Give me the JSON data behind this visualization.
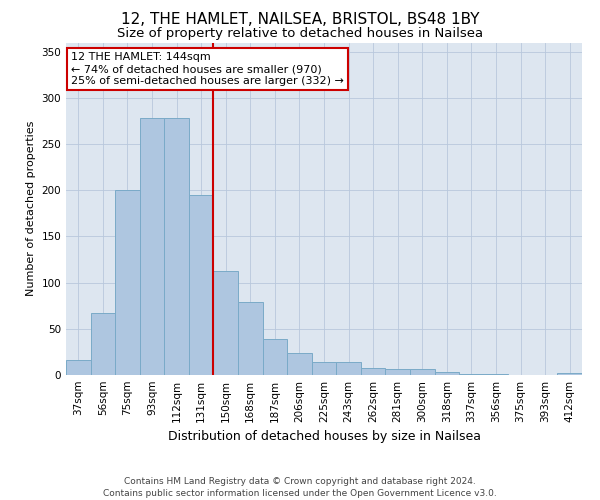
{
  "title1": "12, THE HAMLET, NAILSEA, BRISTOL, BS48 1BY",
  "title2": "Size of property relative to detached houses in Nailsea",
  "xlabel": "Distribution of detached houses by size in Nailsea",
  "ylabel": "Number of detached properties",
  "categories": [
    "37sqm",
    "56sqm",
    "75sqm",
    "93sqm",
    "112sqm",
    "131sqm",
    "150sqm",
    "168sqm",
    "187sqm",
    "206sqm",
    "225sqm",
    "243sqm",
    "262sqm",
    "281sqm",
    "300sqm",
    "318sqm",
    "337sqm",
    "356sqm",
    "375sqm",
    "393sqm",
    "412sqm"
  ],
  "values": [
    16,
    67,
    200,
    278,
    278,
    195,
    113,
    79,
    39,
    24,
    14,
    14,
    8,
    6,
    6,
    3,
    1,
    1,
    0,
    0,
    2
  ],
  "bar_color": "#aec6e0",
  "bar_edge_color": "#7aaac8",
  "vline_x": 5.5,
  "annotation_line1": "12 THE HAMLET: 144sqm",
  "annotation_line2": "← 74% of detached houses are smaller (970)",
  "annotation_line3": "25% of semi-detached houses are larger (332) →",
  "annotation_box_color": "#ffffff",
  "annotation_border_color": "#cc0000",
  "vline_color": "#cc0000",
  "ylim": [
    0,
    360
  ],
  "yticks": [
    0,
    50,
    100,
    150,
    200,
    250,
    300,
    350
  ],
  "background_color": "#dde6f0",
  "footer1": "Contains HM Land Registry data © Crown copyright and database right 2024.",
  "footer2": "Contains public sector information licensed under the Open Government Licence v3.0.",
  "title1_fontsize": 11,
  "title2_fontsize": 9.5,
  "xlabel_fontsize": 9,
  "ylabel_fontsize": 8,
  "tick_fontsize": 7.5,
  "footer_fontsize": 6.5
}
